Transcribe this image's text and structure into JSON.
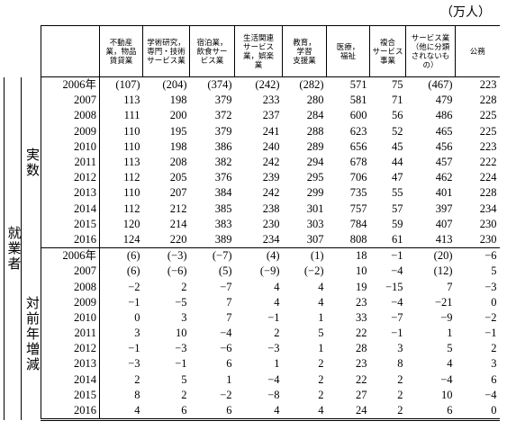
{
  "unit": "（万人）",
  "group_label": "就業者",
  "header": {
    "columns": [
      [
        "不動産",
        "業，物品",
        "賃貸業"
      ],
      [
        "学術研究，",
        "専門・技術",
        "サービス業"
      ],
      [
        "宿泊業，",
        "飲食サー",
        "ビス業"
      ],
      [
        "生活関連",
        "サービス",
        "業，娯楽",
        "業"
      ],
      [
        "教育，",
        "学習",
        "支援業"
      ],
      [
        "医療，",
        "福祉"
      ],
      [
        "複合",
        "サービス",
        "事業"
      ],
      [
        "サービス業",
        "（他に分類",
        "されないも",
        "の）"
      ],
      [
        "公務"
      ]
    ]
  },
  "sections": [
    {
      "label": "実数",
      "rows": [
        {
          "year": "2006年",
          "cells": [
            "(107)",
            "(204)",
            "(374)",
            "(242)",
            "(282)",
            "571",
            "75",
            "(467)",
            "223"
          ]
        },
        {
          "year": "2007",
          "cells": [
            "113",
            "198",
            "379",
            "233",
            "280",
            "581",
            "71",
            "479",
            "228"
          ]
        },
        {
          "year": "2008",
          "cells": [
            "111",
            "200",
            "372",
            "237",
            "284",
            "600",
            "56",
            "486",
            "225"
          ]
        },
        {
          "year": "2009",
          "cells": [
            "110",
            "195",
            "379",
            "241",
            "288",
            "623",
            "52",
            "465",
            "225"
          ]
        },
        {
          "year": "2010",
          "cells": [
            "110",
            "198",
            "386",
            "240",
            "289",
            "656",
            "45",
            "456",
            "223"
          ]
        },
        {
          "year": "2011",
          "cells": [
            "113",
            "208",
            "382",
            "242",
            "294",
            "678",
            "44",
            "457",
            "222"
          ]
        },
        {
          "year": "2012",
          "cells": [
            "112",
            "205",
            "376",
            "239",
            "295",
            "706",
            "47",
            "462",
            "224"
          ]
        },
        {
          "year": "2013",
          "cells": [
            "110",
            "207",
            "384",
            "242",
            "299",
            "735",
            "55",
            "401",
            "228"
          ]
        },
        {
          "year": "2014",
          "cells": [
            "112",
            "212",
            "385",
            "238",
            "301",
            "757",
            "57",
            "397",
            "234"
          ]
        },
        {
          "year": "2015",
          "cells": [
            "120",
            "214",
            "383",
            "230",
            "303",
            "784",
            "59",
            "407",
            "230"
          ]
        },
        {
          "year": "2016",
          "cells": [
            "124",
            "220",
            "389",
            "234",
            "307",
            "808",
            "61",
            "413",
            "230"
          ]
        }
      ]
    },
    {
      "label": "対前年増減",
      "rows": [
        {
          "year": "2006年",
          "cells": [
            "(6)",
            "(−3)",
            "(−7)",
            "(4)",
            "(1)",
            "18",
            "−1",
            "(20)",
            "−6"
          ]
        },
        {
          "year": "2007",
          "cells": [
            "(6)",
            "(−6)",
            "(5)",
            "(−9)",
            "(−2)",
            "10",
            "−4",
            "(12)",
            "5"
          ]
        },
        {
          "year": "2008",
          "cells": [
            "−2",
            "2",
            "−7",
            "4",
            "4",
            "19",
            "−15",
            "7",
            "−3"
          ]
        },
        {
          "year": "2009",
          "cells": [
            "−1",
            "−5",
            "7",
            "4",
            "4",
            "23",
            "−4",
            "−21",
            "0"
          ]
        },
        {
          "year": "2010",
          "cells": [
            "0",
            "3",
            "7",
            "−1",
            "1",
            "33",
            "−7",
            "−9",
            "−2"
          ]
        },
        {
          "year": "2011",
          "cells": [
            "3",
            "10",
            "−4",
            "2",
            "5",
            "22",
            "−1",
            "1",
            "−1"
          ]
        },
        {
          "year": "2012",
          "cells": [
            "−1",
            "−3",
            "−6",
            "−3",
            "1",
            "28",
            "3",
            "5",
            "2"
          ]
        },
        {
          "year": "2013",
          "cells": [
            "−3",
            "−1",
            "6",
            "1",
            "2",
            "23",
            "8",
            "4",
            "3"
          ]
        },
        {
          "year": "2014",
          "cells": [
            "2",
            "5",
            "1",
            "−4",
            "2",
            "22",
            "2",
            "−4",
            "6"
          ]
        },
        {
          "year": "2015",
          "cells": [
            "8",
            "2",
            "−2",
            "−8",
            "2",
            "27",
            "2",
            "10",
            "−4"
          ]
        },
        {
          "year": "2016",
          "cells": [
            "4",
            "6",
            "6",
            "4",
            "4",
            "24",
            "2",
            "6",
            "0"
          ]
        }
      ]
    }
  ]
}
